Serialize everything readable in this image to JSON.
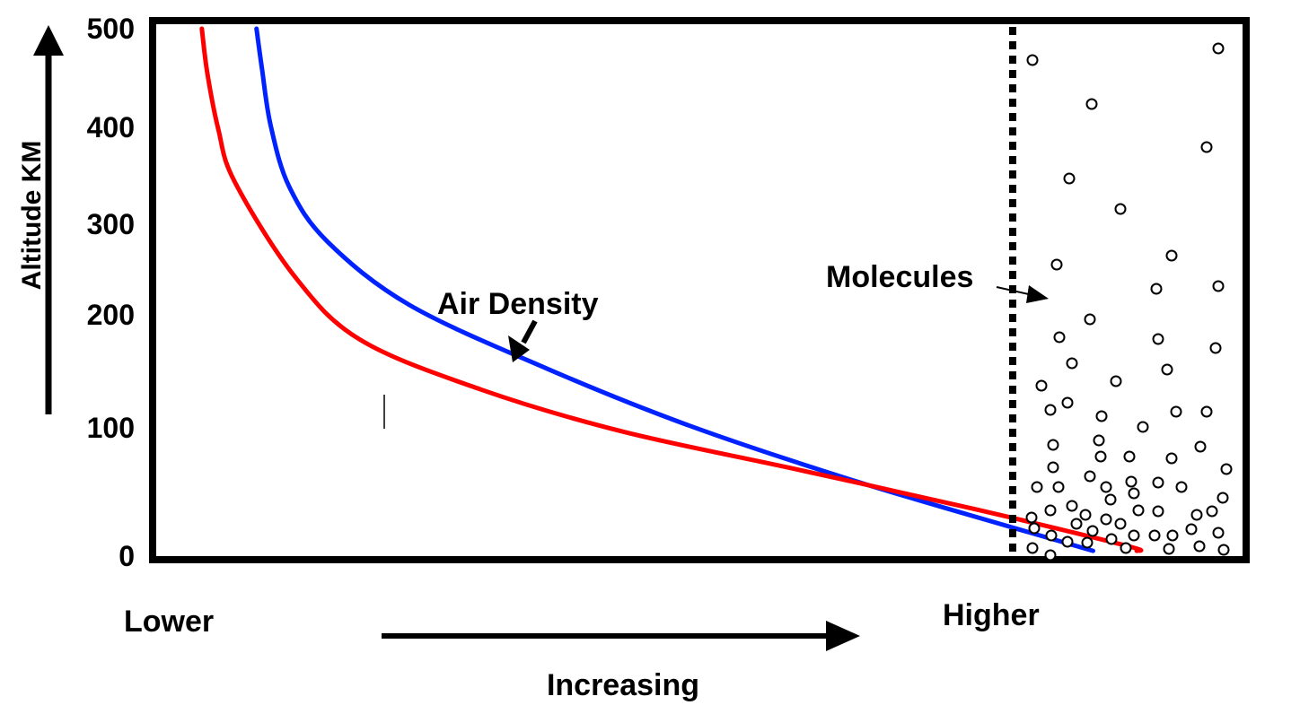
{
  "colors": {
    "frame": "#000000",
    "red_curve": "#ff0000",
    "blue_curve": "#0022ff",
    "background": "#ffffff"
  },
  "chart_data": {
    "type": "line",
    "title": "",
    "ylabel": "Altitude KM",
    "xlabel": "Increasing",
    "x_start_label": "Lower",
    "x_end_label": "Higher",
    "ylim": [
      0,
      500
    ],
    "yticks": [
      {
        "value": 500,
        "label": "500"
      },
      {
        "value": 400,
        "label": "400"
      },
      {
        "value": 300,
        "label": "300"
      },
      {
        "value": 200,
        "label": "200"
      },
      {
        "value": 100,
        "label": "100"
      },
      {
        "value": 0,
        "label": "0"
      }
    ],
    "series": [
      {
        "id": "blue",
        "color": "#0022ff",
        "points": [
          [
            0.095,
            500
          ],
          [
            0.1,
            462
          ],
          [
            0.108,
            408
          ],
          [
            0.125,
            350
          ],
          [
            0.16,
            298
          ],
          [
            0.235,
            238
          ],
          [
            0.36,
            178
          ],
          [
            0.49,
            124
          ],
          [
            0.64,
            72
          ],
          [
            0.79,
            26
          ],
          [
            0.86,
            5
          ]
        ]
      },
      {
        "id": "red",
        "color": "#ff0000",
        "points": [
          [
            0.045,
            500
          ],
          [
            0.05,
            458
          ],
          [
            0.06,
            405
          ],
          [
            0.075,
            355
          ],
          [
            0.13,
            265
          ],
          [
            0.19,
            205
          ],
          [
            0.3,
            158
          ],
          [
            0.43,
            118
          ],
          [
            0.59,
            82
          ],
          [
            0.75,
            45
          ],
          [
            0.89,
            10
          ],
          [
            0.9,
            5
          ]
        ]
      }
    ],
    "annotations": [
      {
        "id": "air-density",
        "text": "Air Density"
      },
      {
        "id": "molecules",
        "text": "Molecules"
      }
    ],
    "molecule_boundary": {
      "x": 0.878,
      "style": "dotted"
    }
  }
}
